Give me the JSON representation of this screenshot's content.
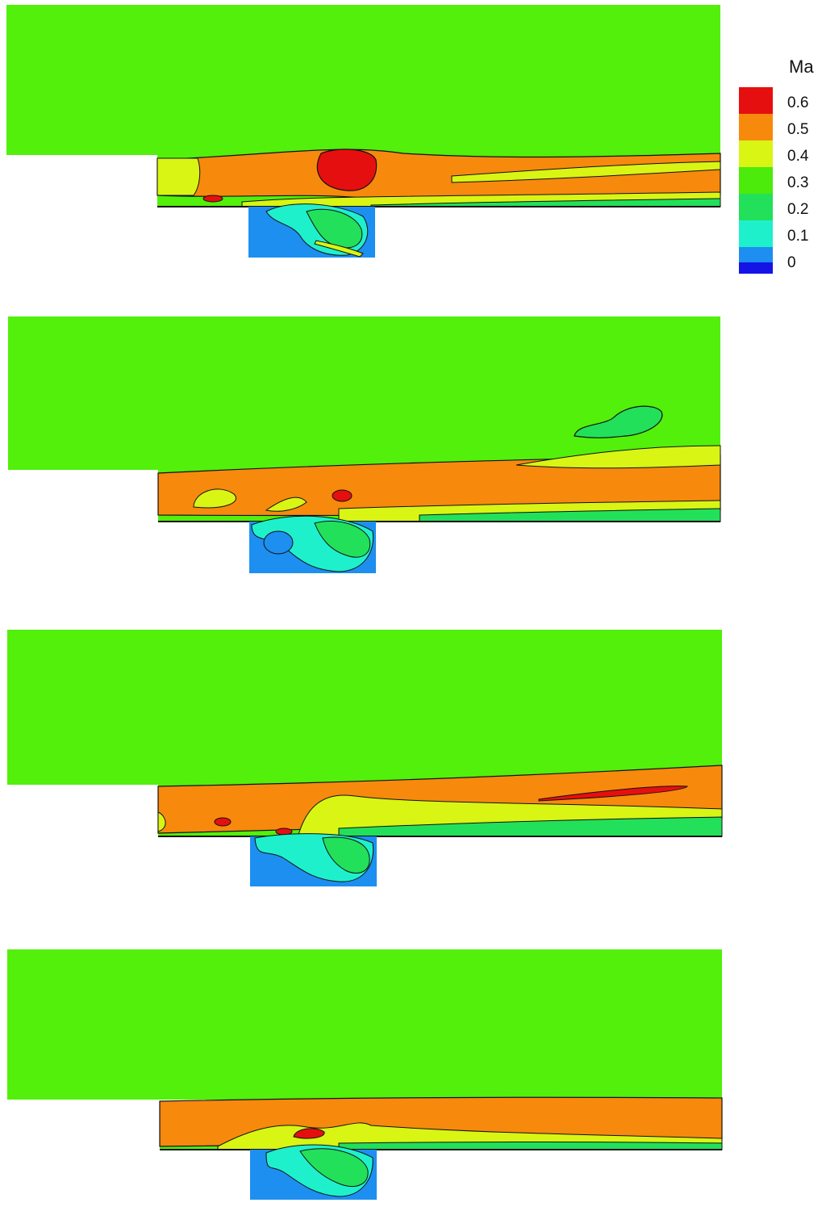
{
  "legend": {
    "title": "Ma",
    "levels": [
      {
        "label": "0.6",
        "color": "#e60f0f"
      },
      {
        "label": "0.5",
        "color": "#f7890d"
      },
      {
        "label": "0.4",
        "color": "#d8f514"
      },
      {
        "label": "0.3",
        "color": "#4ceb0c"
      },
      {
        "label": "0.2",
        "color": "#22e05a"
      },
      {
        "label": "0.1",
        "color": "#1ff0cc"
      },
      {
        "label": "0",
        "color": "#1d8ff0"
      }
    ],
    "bottom_color": "#1414e6"
  },
  "colors": {
    "freestream": "#52f00a",
    "shear_layer": "#f7890d",
    "peak": "#e60f0f",
    "transition": "#d8f514",
    "cavity_low": "#1d8ff0",
    "cavity_mid": "#1ff0cc",
    "cavity_green": "#22e05a",
    "contour_line": "#111111"
  },
  "snapshots": [
    {
      "id": "snapshot-1"
    },
    {
      "id": "snapshot-2"
    },
    {
      "id": "snapshot-3"
    },
    {
      "id": "snapshot-4"
    }
  ]
}
